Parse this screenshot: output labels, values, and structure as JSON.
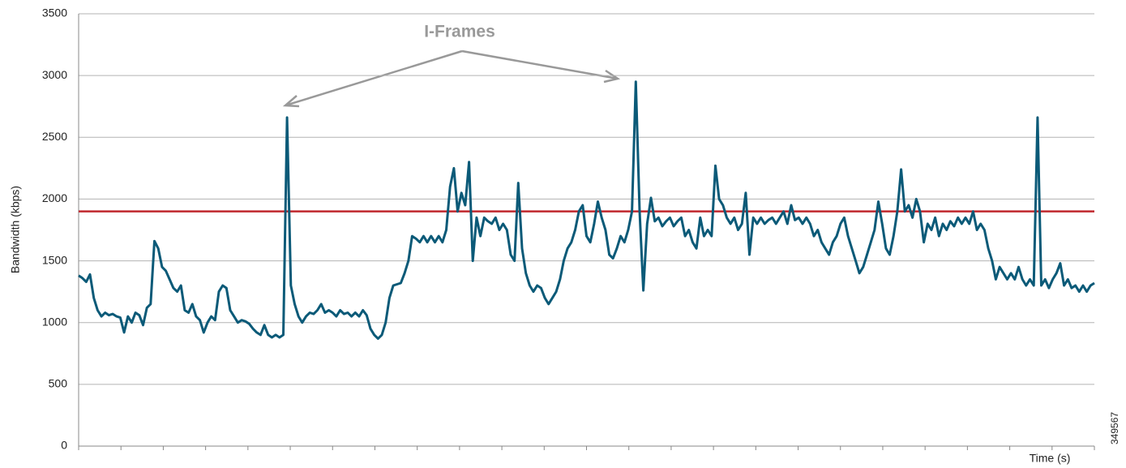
{
  "chart_data": {
    "type": "line",
    "y_label": "Bandwidth (kbps)",
    "x_label": "Time (s)",
    "annotation": "I-Frames",
    "figure_id": "349567",
    "ylim": [
      0,
      3500
    ],
    "yticks": [
      0,
      500,
      1000,
      1500,
      2000,
      2500,
      3000,
      3500
    ],
    "grid": true,
    "reference_line": {
      "value": 1900,
      "color": "#c0272d"
    },
    "series": [
      {
        "color": "#0b5a78",
        "values": [
          1380,
          1360,
          1330,
          1390,
          1200,
          1100,
          1050,
          1080,
          1060,
          1070,
          1050,
          1040,
          920,
          1050,
          1000,
          1080,
          1060,
          980,
          1120,
          1150,
          1660,
          1600,
          1450,
          1420,
          1350,
          1280,
          1250,
          1300,
          1100,
          1080,
          1150,
          1050,
          1020,
          920,
          1000,
          1050,
          1020,
          1250,
          1300,
          1280,
          1100,
          1050,
          1000,
          1020,
          1010,
          990,
          950,
          920,
          900,
          980,
          900,
          880,
          900,
          880,
          900,
          2660,
          1300,
          1150,
          1050,
          1000,
          1050,
          1080,
          1070,
          1100,
          1150,
          1080,
          1100,
          1080,
          1050,
          1100,
          1070,
          1080,
          1050,
          1080,
          1050,
          1100,
          1060,
          950,
          900,
          870,
          900,
          1000,
          1200,
          1300,
          1310,
          1320,
          1400,
          1500,
          1700,
          1680,
          1650,
          1700,
          1650,
          1700,
          1650,
          1700,
          1650,
          1750,
          2100,
          2250,
          1900,
          2050,
          1950,
          2300,
          1500,
          1850,
          1700,
          1850,
          1820,
          1800,
          1850,
          1750,
          1800,
          1750,
          1550,
          1500,
          2130,
          1600,
          1400,
          1300,
          1250,
          1300,
          1280,
          1200,
          1150,
          1200,
          1250,
          1350,
          1500,
          1600,
          1650,
          1750,
          1900,
          1950,
          1700,
          1650,
          1800,
          1980,
          1850,
          1750,
          1550,
          1520,
          1600,
          1700,
          1650,
          1750,
          1900,
          2950,
          1900,
          1260,
          1800,
          2010,
          1820,
          1850,
          1780,
          1820,
          1850,
          1780,
          1820,
          1850,
          1700,
          1750,
          1650,
          1600,
          1850,
          1700,
          1750,
          1700,
          2270,
          2000,
          1950,
          1850,
          1800,
          1850,
          1750,
          1800,
          2050,
          1550,
          1850,
          1800,
          1850,
          1800,
          1830,
          1850,
          1800,
          1850,
          1900,
          1800,
          1950,
          1830,
          1850,
          1800,
          1850,
          1800,
          1700,
          1750,
          1650,
          1600,
          1550,
          1650,
          1700,
          1800,
          1850,
          1700,
          1600,
          1500,
          1400,
          1450,
          1550,
          1650,
          1750,
          1980,
          1800,
          1600,
          1550,
          1700,
          1900,
          2240,
          1900,
          1950,
          1850,
          2000,
          1900,
          1650,
          1800,
          1750,
          1850,
          1700,
          1800,
          1750,
          1820,
          1780,
          1850,
          1800,
          1850,
          1800,
          1900,
          1750,
          1800,
          1750,
          1600,
          1500,
          1350,
          1450,
          1400,
          1350,
          1400,
          1350,
          1450,
          1350,
          1300,
          1350,
          1300,
          2660,
          1300,
          1350,
          1280,
          1350,
          1400,
          1480,
          1300,
          1350,
          1280,
          1300,
          1250,
          1300,
          1250,
          1300,
          1320
        ]
      }
    ]
  }
}
